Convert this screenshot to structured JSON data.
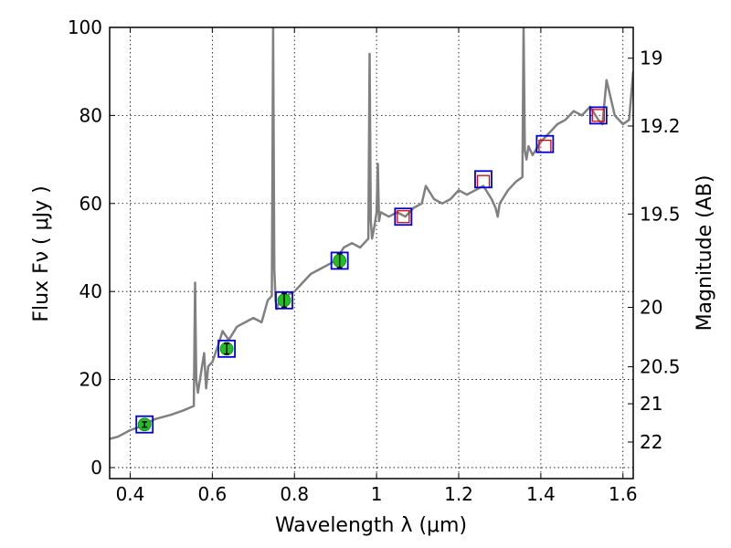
{
  "chart_data": {
    "type": "line",
    "xlabel": "Wavelength  λ (μm)",
    "ylabel": "Flux  Fν  ( μJy )",
    "ylabel_right": "Magnitude (AB)",
    "xlim": [
      0.35,
      1.625
    ],
    "ylim": [
      -2.5,
      100
    ],
    "grid": true,
    "x_ticks": [
      {
        "value": 0.4,
        "label": "0.4"
      },
      {
        "value": 0.6,
        "label": "0.6"
      },
      {
        "value": 0.8,
        "label": "0.8"
      },
      {
        "value": 1.0,
        "label": "1"
      },
      {
        "value": 1.2,
        "label": "1.2"
      },
      {
        "value": 1.4,
        "label": "1.4"
      },
      {
        "value": 1.6,
        "label": "1.6"
      }
    ],
    "y_ticks": [
      {
        "value": 0,
        "label": "0"
      },
      {
        "value": 20,
        "label": "20"
      },
      {
        "value": 40,
        "label": "40"
      },
      {
        "value": 60,
        "label": "60"
      },
      {
        "value": 80,
        "label": "80"
      },
      {
        "value": 100,
        "label": "100"
      }
    ],
    "mag_ticks": [
      {
        "flux": 93.0,
        "label": "19"
      },
      {
        "flux": 77.6,
        "label": "19.2"
      },
      {
        "flux": 57.6,
        "label": "19.5"
      },
      {
        "flux": 36.4,
        "label": "20"
      },
      {
        "flux": 22.9,
        "label": "20.5"
      },
      {
        "flux": 14.5,
        "label": "21"
      },
      {
        "flux": 5.8,
        "label": "22"
      }
    ],
    "series": [
      {
        "style": "line",
        "color": "#808080",
        "x": [
          0.35,
          0.37,
          0.4,
          0.43,
          0.46,
          0.5,
          0.53,
          0.555,
          0.558,
          0.561,
          0.565,
          0.58,
          0.585,
          0.59,
          0.6,
          0.615,
          0.625,
          0.64,
          0.66,
          0.68,
          0.7,
          0.72,
          0.735,
          0.745,
          0.748,
          0.751,
          0.754,
          0.757,
          0.76,
          0.78,
          0.8,
          0.82,
          0.84,
          0.86,
          0.88,
          0.9,
          0.92,
          0.94,
          0.96,
          0.98,
          0.983,
          0.986,
          0.989,
          0.995,
          1.0,
          1.003,
          1.006,
          1.01,
          1.03,
          1.05,
          1.07,
          1.09,
          1.11,
          1.12,
          1.14,
          1.16,
          1.18,
          1.2,
          1.22,
          1.24,
          1.26,
          1.28,
          1.29,
          1.295,
          1.3,
          1.32,
          1.34,
          1.355,
          1.358,
          1.361,
          1.365,
          1.37,
          1.375,
          1.38,
          1.4,
          1.42,
          1.44,
          1.46,
          1.48,
          1.5,
          1.52,
          1.54,
          1.55,
          1.56,
          1.58,
          1.6,
          1.615,
          1.625
        ],
        "y": [
          6.5,
          7,
          8.5,
          9.5,
          11,
          12,
          13,
          14,
          42,
          20,
          17,
          26,
          18,
          23,
          24,
          28,
          31,
          29,
          32,
          33,
          34,
          33,
          38,
          39,
          100,
          45,
          38,
          36,
          37,
          39,
          40,
          42,
          44,
          45,
          46,
          47,
          50,
          51,
          50,
          52,
          94,
          56,
          52,
          55,
          58,
          69,
          56,
          58,
          57,
          58,
          57,
          59,
          60,
          64,
          61,
          60,
          61,
          63,
          62,
          63,
          64,
          61,
          59,
          57,
          60,
          63,
          65,
          66,
          100,
          72,
          70,
          73,
          72,
          71,
          74,
          76,
          78,
          79,
          81,
          80,
          82,
          79,
          78,
          88,
          80,
          78,
          79,
          90
        ]
      },
      {
        "style": "errorbar",
        "color": "#20c020",
        "x": [
          0.435,
          0.635,
          0.775,
          0.91
        ],
        "y": [
          9.8,
          27.0,
          38.0,
          47.0
        ],
        "yerr": [
          0.6,
          1.2,
          1.6,
          1.6
        ]
      },
      {
        "style": "open-square",
        "color": "#dd0000",
        "x": [
          1.065,
          1.26,
          1.41,
          1.54
        ],
        "y": [
          57.0,
          65.0,
          73.0,
          80.0
        ]
      },
      {
        "style": "open-square",
        "color": "#0000dd",
        "x": [
          0.435,
          0.635,
          0.775,
          0.91,
          1.065,
          1.26,
          1.41,
          1.54
        ],
        "y": [
          9.8,
          27.0,
          38.0,
          47.0,
          57.0,
          65.5,
          73.5,
          80.0
        ]
      }
    ]
  }
}
